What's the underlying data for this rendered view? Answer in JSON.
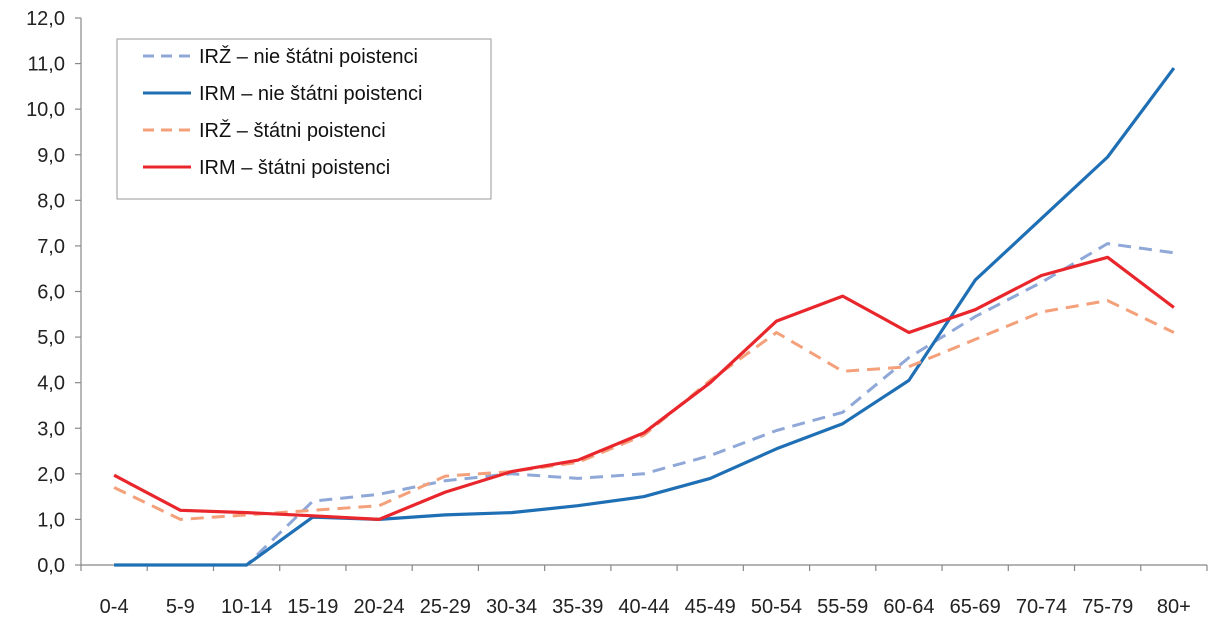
{
  "chart_data": {
    "type": "line",
    "categories": [
      "0-4",
      "5-9",
      "10-14",
      "15-19",
      "20-24",
      "25-29",
      "30-34",
      "35-39",
      "40-44",
      "45-49",
      "50-54",
      "55-59",
      "60-64",
      "65-69",
      "70-74",
      "75-79",
      "80+"
    ],
    "y_tick_labels": [
      "0,0",
      "1,0",
      "2,0",
      "3,0",
      "4,0",
      "5,0",
      "6,0",
      "7,0",
      "8,0",
      "9,0",
      "10,0",
      "11,0",
      "12,0"
    ],
    "ylim": [
      0,
      12
    ],
    "grid": false,
    "legend_position": "top-left",
    "series": [
      {
        "name": "IRŽ – nie štátni poistenci",
        "color": "#8fa8d8",
        "dash": true,
        "values": [
          0.0,
          0.0,
          0.0,
          1.4,
          1.55,
          1.85,
          2.0,
          1.9,
          2.0,
          2.4,
          2.95,
          3.35,
          4.55,
          5.45,
          6.2,
          7.05,
          6.85
        ]
      },
      {
        "name": "IRM – nie štátni poistenci",
        "color": "#1f6fb5",
        "dash": false,
        "values": [
          0.0,
          0.0,
          0.0,
          1.05,
          1.0,
          1.1,
          1.15,
          1.3,
          1.5,
          1.9,
          2.55,
          3.1,
          4.05,
          6.25,
          7.6,
          8.95,
          10.9
        ]
      },
      {
        "name": "IRŽ – štátni poistenci",
        "color": "#f4a07a",
        "dash": true,
        "values": [
          1.7,
          1.0,
          1.1,
          1.2,
          1.3,
          1.95,
          2.05,
          2.25,
          2.85,
          4.05,
          5.1,
          4.25,
          4.35,
          4.95,
          5.55,
          5.8,
          5.1
        ]
      },
      {
        "name": "IRM – štátni poistenci",
        "color": "#e8262b",
        "dash": false,
        "values": [
          1.97,
          1.2,
          1.15,
          1.08,
          1.0,
          1.6,
          2.05,
          2.3,
          2.9,
          4.0,
          5.35,
          5.9,
          5.1,
          5.6,
          6.35,
          6.75,
          5.65
        ]
      }
    ]
  }
}
